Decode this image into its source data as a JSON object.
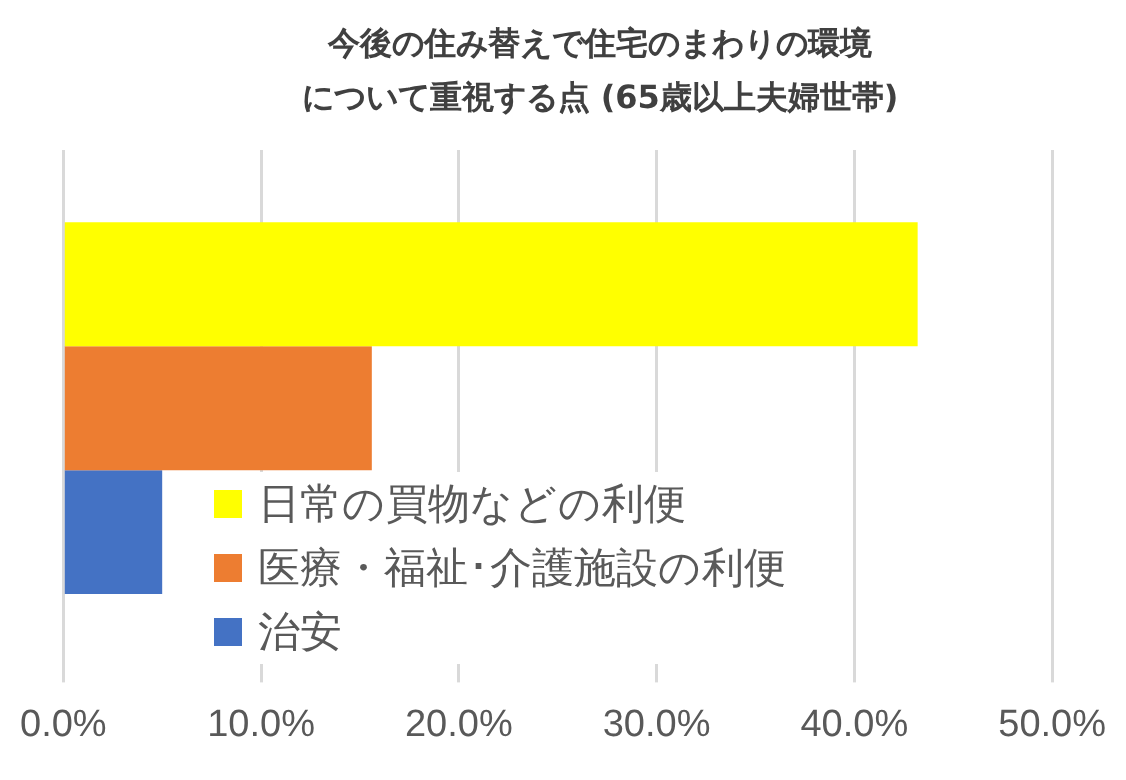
{
  "chart_data": {
    "type": "bar",
    "orientation": "horizontal",
    "title": "今後の住み替えで住宅のまわりの環境について重視する点 (65歳以上夫婦世帯)",
    "categories": [
      null
    ],
    "series": [
      {
        "name": "日常の買物などの利便",
        "color": "#ffff00",
        "values": [
          43.2
        ]
      },
      {
        "name": "医療・福祉･介護施設の利便",
        "color": "#ed7d31",
        "values": [
          15.6
        ]
      },
      {
        "name": "治安",
        "color": "#4472c4",
        "values": [
          5.0
        ]
      }
    ],
    "xlim": [
      0,
      50
    ],
    "xticks": [
      {
        "value": 0,
        "label": "0.0%"
      },
      {
        "value": 10,
        "label": "10.0%"
      },
      {
        "value": 20,
        "label": "20.0%"
      },
      {
        "value": 30,
        "label": "30.0%"
      },
      {
        "value": 40,
        "label": "40.0%"
      },
      {
        "value": 50,
        "label": "50.0%"
      }
    ],
    "grid": "x",
    "legend": "bottom",
    "tick_labels": "x"
  }
}
